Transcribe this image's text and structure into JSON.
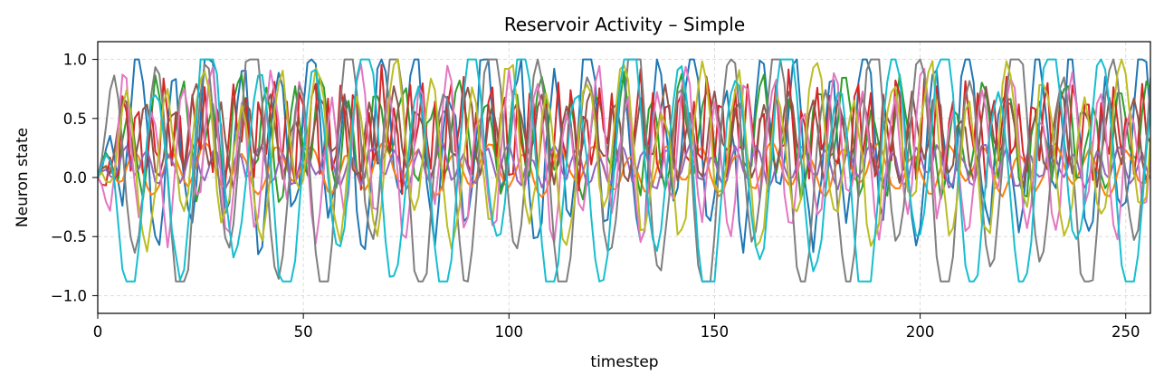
{
  "chart_data": {
    "type": "line",
    "title": "Reservoir Activity – Simple",
    "xlabel": "timestep",
    "ylabel": "Neuron state",
    "xlim": [
      0,
      256
    ],
    "ylim": [
      -1.15,
      1.15
    ],
    "x_ticks": [
      0,
      50,
      100,
      150,
      200,
      250
    ],
    "y_ticks": [
      -1.0,
      -0.5,
      0.0,
      0.5,
      1.0
    ],
    "x_tick_labels": [
      "0",
      "50",
      "100",
      "150",
      "200",
      "250"
    ],
    "y_tick_labels": [
      "−1.0",
      "−0.5",
      "0.0",
      "0.5",
      "1.0"
    ],
    "grid": true,
    "legend": "none",
    "x_start": 0,
    "x_end": 256,
    "series": [
      {
        "color": "#1f77b4",
        "amp": 0.68,
        "offset": 0.3,
        "period": 8.4,
        "phase": 0.3,
        "noise": 0.15,
        "values_sample": [
          0.3,
          -0.3,
          0.7,
          0.55,
          0.68,
          0.4,
          0.68,
          0.3,
          0.7,
          0.25
        ]
      },
      {
        "color": "#ff7f0e",
        "amp": 0.17,
        "offset": 0.07,
        "period": 8.6,
        "phase": 1.2,
        "noise": 0.02,
        "values_sample": [
          0.05,
          -0.1,
          0.22,
          -0.05,
          0.22,
          -0.08,
          0.23,
          -0.07,
          0.23,
          -0.08
        ]
      },
      {
        "color": "#2ca02c",
        "amp": 0.38,
        "offset": 0.35,
        "period": 6.7,
        "phase": 0.8,
        "noise": 0.1,
        "values_sample": [
          0.1,
          0.3,
          0.62,
          0.4,
          0.62,
          0.35,
          0.6,
          0.45,
          0.58,
          0.4
        ]
      },
      {
        "color": "#d62728",
        "amp": 0.35,
        "offset": 0.4,
        "period": 3.3,
        "phase": 2.0,
        "noise": 0.1,
        "values_sample": [
          0.1,
          0.85,
          0.4,
          0.8,
          0.35,
          0.6,
          0.3,
          0.6,
          0.3,
          0.55
        ]
      },
      {
        "color": "#9467bd",
        "amp": 0.14,
        "offset": 0.1,
        "period": 5.5,
        "phase": 0.5,
        "noise": 0.03,
        "values_sample": [
          0.0,
          0.2,
          0.12,
          0.22,
          0.1,
          0.2,
          0.08,
          0.2,
          0.1,
          0.18
        ]
      },
      {
        "color": "#8c564b",
        "amp": 0.3,
        "offset": 0.35,
        "period": 6.0,
        "phase": 1.6,
        "noise": 0.08,
        "values_sample": [
          0.2,
          0.6,
          0.4,
          0.5,
          0.3,
          0.7,
          0.4,
          0.75,
          0.4,
          0.7
        ]
      },
      {
        "color": "#e377c2",
        "amp": 0.55,
        "offset": 0.2,
        "period": 7.2,
        "phase": 2.4,
        "noise": 0.08,
        "values_sample": [
          0.2,
          0.7,
          0.5,
          0.77,
          -0.4,
          0.77,
          -0.35,
          0.78,
          -0.3,
          0.72
        ]
      },
      {
        "color": "#7f7f7f",
        "amp": 0.95,
        "offset": 0.1,
        "period": 11.6,
        "phase": 0.0,
        "noise": 0.05,
        "values_sample": [
          0.1,
          1.0,
          0.9,
          -0.88,
          1.0,
          -0.88,
          1.0,
          -0.88,
          1.0,
          -0.88
        ]
      },
      {
        "color": "#bcbd22",
        "amp": 0.6,
        "offset": 0.2,
        "period": 9.3,
        "phase": 3.0,
        "noise": 0.1,
        "values_sample": [
          0.1,
          0.8,
          0.5,
          0.4,
          -0.3,
          0.5,
          -0.4,
          0.45,
          -0.5,
          0.5
        ]
      },
      {
        "color": "#17becf",
        "amp": 0.95,
        "offset": 0.08,
        "period": 12.8,
        "phase": 1.0,
        "noise": 0.05,
        "values_sample": [
          0.1,
          1.0,
          -0.08,
          1.0,
          -0.88,
          1.0,
          -0.88,
          1.0,
          -0.4,
          1.0
        ]
      }
    ]
  }
}
